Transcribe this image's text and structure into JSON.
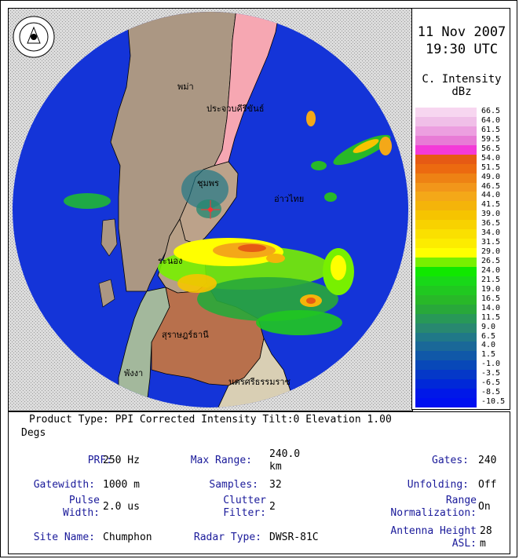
{
  "header": {
    "date": "11 Nov 2007",
    "time": "19:30 UTC"
  },
  "legend": {
    "title_line1": "C. Intensity",
    "title_line2": "dBz",
    "levels": [
      "66.5",
      "64.0",
      "61.5",
      "59.5",
      "56.5",
      "54.0",
      "51.5",
      "49.0",
      "46.5",
      "44.0",
      "41.5",
      "39.0",
      "36.5",
      "34.0",
      "31.5",
      "29.0",
      "26.5",
      "24.0",
      "21.5",
      "19.0",
      "16.5",
      "14.0",
      "11.5",
      "9.0",
      "6.5",
      "4.0",
      "1.5",
      "-1.0",
      "-3.5",
      "-6.5",
      "-8.5",
      "-10.5"
    ],
    "colors": [
      "#f7d6f0",
      "#f0bfe8",
      "#ec9fe0",
      "#e87bd6",
      "#f43ad8",
      "#e65a14",
      "#ec6a10",
      "#ee8214",
      "#f2961a",
      "#f4a818",
      "#f4b40a",
      "#f6c400",
      "#f8d200",
      "#fae000",
      "#fcec00",
      "#ffff00",
      "#78f000",
      "#10e800",
      "#18d818",
      "#20c820",
      "#28b828",
      "#28a83a",
      "#289858",
      "#288870",
      "#207888",
      "#1a6898",
      "#1058a8",
      "#0848b8",
      "#0538c8",
      "#0028d8",
      "#0018e8",
      "#0010f0"
    ]
  },
  "map_labels": {
    "myanmar": "พม่า",
    "prachuap": "ประจวบคีรีขันธ์",
    "chumphon": "ชุมพร",
    "gulf": "อ่าวไทย",
    "ranong": "ระนอง",
    "surat": "สุราษฎร์ธานี",
    "phangnga": "พังงา",
    "nakhon": "นครศรีธรรมราช"
  },
  "info": {
    "product_line": "Product Type: PPI Corrected Intensity   Tilt:0   Elevation   1.00",
    "product_line2": "Degs",
    "prf_label": "PRF:",
    "prf_value": "250 Hz",
    "maxrange_label": "Max Range:",
    "maxrange_value1": "240.0",
    "maxrange_value2": "km",
    "gates_label": "Gates:",
    "gates_value": "240",
    "gatewidth_label": "Gatewidth:",
    "gatewidth_value": "1000 m",
    "samples_label": "Samples:",
    "samples_value": "32",
    "unfolding_label": "Unfolding:",
    "unfolding_value": "Off",
    "pulse_label1": "Pulse",
    "pulse_label2": "Width:",
    "pulse_value": "2.0 us",
    "clutter_label1": "Clutter",
    "clutter_label2": "Filter:",
    "clutter_value": "2",
    "range_label1": "Range",
    "range_label2": "Normalization:",
    "range_value": "On",
    "site_label": "Site Name:",
    "site_value": "Chumphon",
    "radar_label": "Radar Type:",
    "radar_value": "DWSR-81C",
    "antenna_label1": "Antenna Height",
    "antenna_label2": "ASL:",
    "antenna_value1": "28",
    "antenna_value2": "m"
  }
}
